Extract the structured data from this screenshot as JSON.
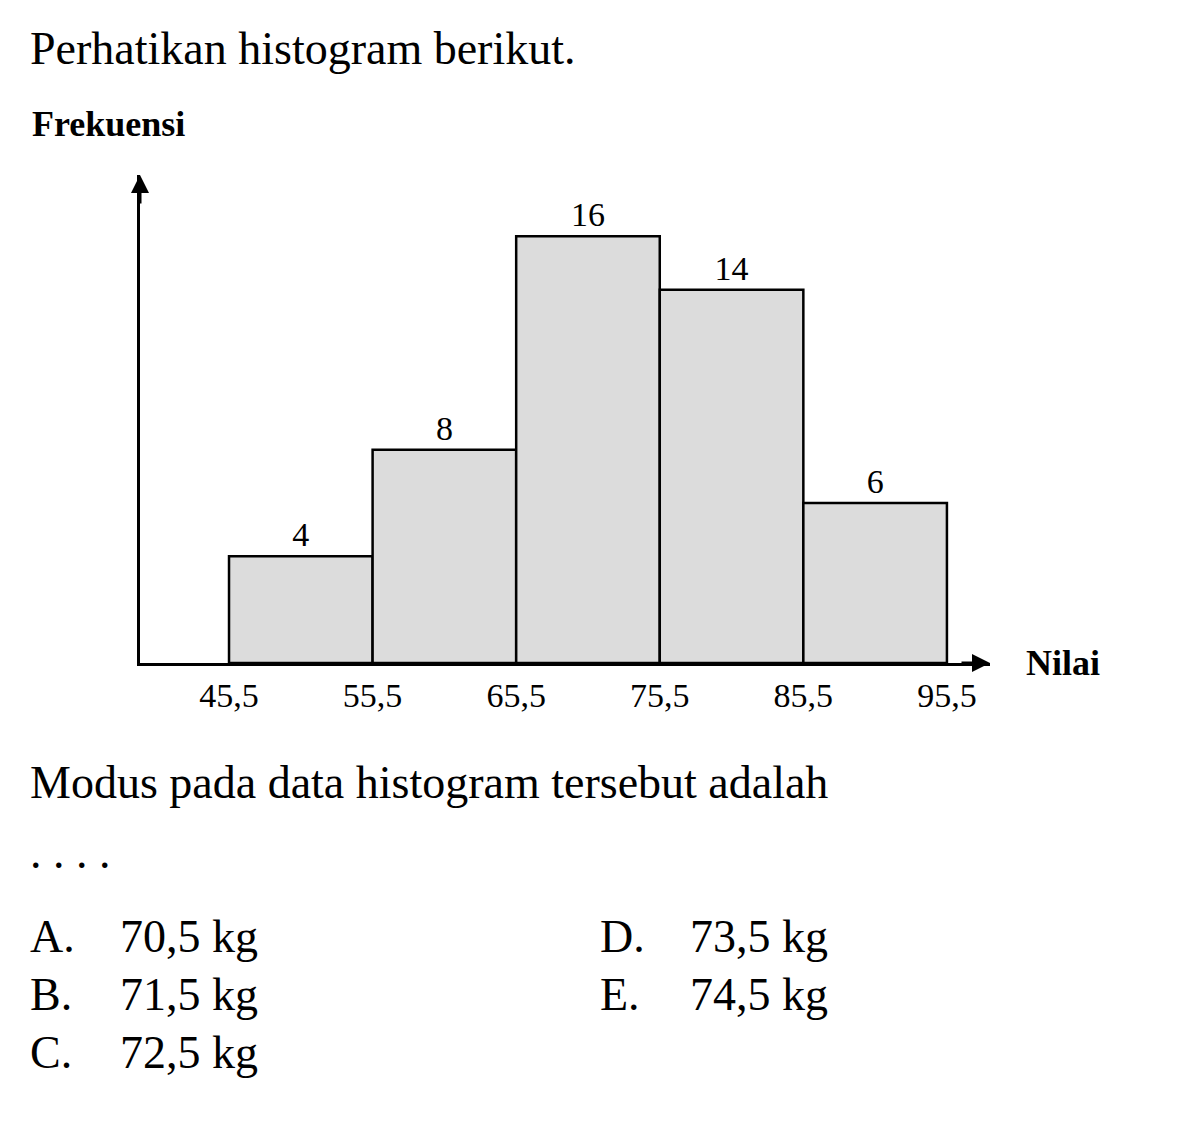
{
  "header": "Perhatikan histogram berikut.",
  "chart_data": {
    "type": "histogram",
    "xlabel": "Nilai",
    "ylabel": "Frekuensi",
    "bins": [
      45.5,
      55.5,
      65.5,
      75.5,
      85.5,
      95.5
    ],
    "values": [
      4,
      8,
      16,
      14,
      6
    ],
    "color": "#dcdcdc",
    "xlim": [
      39.3,
      98.5
    ],
    "xticks": [
      {
        "value": 45.5,
        "label": "45,5"
      },
      {
        "value": 55.5,
        "label": "55,5"
      },
      {
        "value": 65.5,
        "label": "65,5"
      },
      {
        "value": 75.5,
        "label": "75,5"
      },
      {
        "value": 85.5,
        "label": "85,5"
      },
      {
        "value": 95.5,
        "label": "95,5"
      }
    ],
    "ylim": [
      0,
      18.3
    ],
    "tick_labels": "x",
    "data_labels": true,
    "grid": false
  },
  "question": "Modus pada data histogram tersebut adalah",
  "ellipsis": ". . . .",
  "options": [
    {
      "letter": "A.",
      "text": "70,5 kg"
    },
    {
      "letter": "B.",
      "text": "71,5 kg"
    },
    {
      "letter": "C.",
      "text": "72,5 kg"
    },
    {
      "letter": "D.",
      "text": "73,5 kg"
    },
    {
      "letter": "E.",
      "text": "74,5 kg"
    }
  ]
}
